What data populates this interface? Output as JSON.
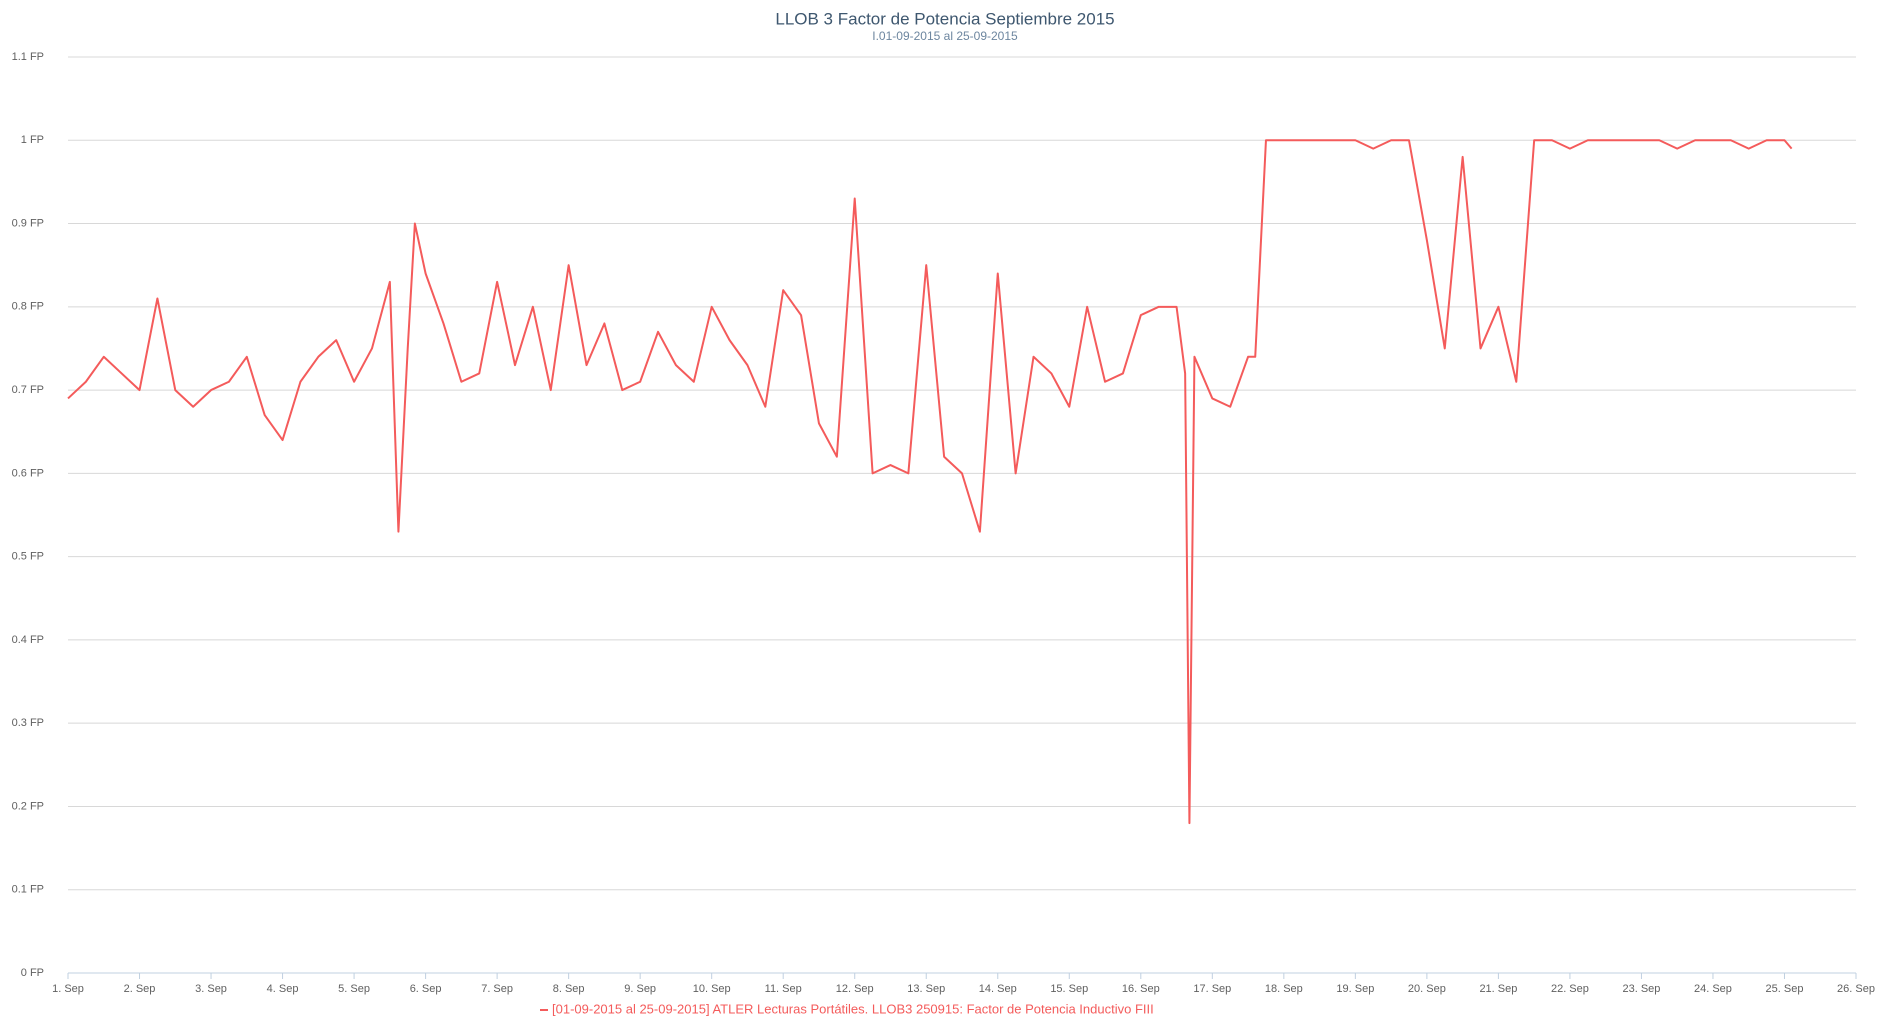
{
  "chart_data": {
    "type": "line",
    "title": "LLOB 3 Factor de Potencia Septiembre 2015",
    "subtitle": "I.01-09-2015 al 25-09-2015",
    "xlim": [
      1,
      26
    ],
    "xticks": [
      {
        "value": 1,
        "label": "1. Sep"
      },
      {
        "value": 2,
        "label": "2. Sep"
      },
      {
        "value": 3,
        "label": "3. Sep"
      },
      {
        "value": 4,
        "label": "4. Sep"
      },
      {
        "value": 5,
        "label": "5. Sep"
      },
      {
        "value": 6,
        "label": "6. Sep"
      },
      {
        "value": 7,
        "label": "7. Sep"
      },
      {
        "value": 8,
        "label": "8. Sep"
      },
      {
        "value": 9,
        "label": "9. Sep"
      },
      {
        "value": 10,
        "label": "10. Sep"
      },
      {
        "value": 11,
        "label": "11. Sep"
      },
      {
        "value": 12,
        "label": "12. Sep"
      },
      {
        "value": 13,
        "label": "13. Sep"
      },
      {
        "value": 14,
        "label": "14. Sep"
      },
      {
        "value": 15,
        "label": "15. Sep"
      },
      {
        "value": 16,
        "label": "16. Sep"
      },
      {
        "value": 17,
        "label": "17. Sep"
      },
      {
        "value": 18,
        "label": "18. Sep"
      },
      {
        "value": 19,
        "label": "19. Sep"
      },
      {
        "value": 20,
        "label": "20. Sep"
      },
      {
        "value": 21,
        "label": "21. Sep"
      },
      {
        "value": 22,
        "label": "22. Sep"
      },
      {
        "value": 23,
        "label": "23. Sep"
      },
      {
        "value": 24,
        "label": "24. Sep"
      },
      {
        "value": 25,
        "label": "25. Sep"
      },
      {
        "value": 26,
        "label": "26. Sep"
      }
    ],
    "ylim": [
      0,
      1.1
    ],
    "yticks": [
      {
        "value": 0,
        "label": "0 FP"
      },
      {
        "value": 0.1,
        "label": "0.1 FP"
      },
      {
        "value": 0.2,
        "label": "0.2 FP"
      },
      {
        "value": 0.3,
        "label": "0.3 FP"
      },
      {
        "value": 0.4,
        "label": "0.4 FP"
      },
      {
        "value": 0.5,
        "label": "0.5 FP"
      },
      {
        "value": 0.6,
        "label": "0.6 FP"
      },
      {
        "value": 0.7,
        "label": "0.7 FP"
      },
      {
        "value": 0.8,
        "label": "0.8 FP"
      },
      {
        "value": 0.9,
        "label": "0.9 FP"
      },
      {
        "value": 1,
        "label": "1 FP"
      },
      {
        "value": 1.1,
        "label": "1.1 FP"
      }
    ],
    "grid": true,
    "x": [
      1,
      1.25,
      1.5,
      1.75,
      2,
      2.25,
      2.5,
      2.75,
      3,
      3.25,
      3.5,
      3.75,
      4,
      4.25,
      4.5,
      4.75,
      5,
      5.25,
      5.5,
      5.62,
      5.75,
      5.85,
      6,
      6.25,
      6.5,
      6.75,
      7,
      7.25,
      7.5,
      7.75,
      8,
      8.25,
      8.5,
      8.75,
      9,
      9.25,
      9.5,
      9.75,
      10,
      10.25,
      10.5,
      10.75,
      11,
      11.25,
      11.5,
      11.75,
      12,
      12.25,
      12.5,
      12.75,
      13,
      13.25,
      13.5,
      13.75,
      14,
      14.25,
      14.5,
      14.75,
      15,
      15.25,
      15.5,
      15.75,
      16,
      16.25,
      16.5,
      16.62,
      16.68,
      16.75,
      17,
      17.25,
      17.5,
      17.6,
      17.75,
      18,
      18.25,
      18.5,
      18.75,
      19,
      19.25,
      19.5,
      19.75,
      20,
      20.25,
      20.5,
      20.75,
      21,
      21.25,
      21.5,
      21.75,
      22,
      22.25,
      22.5,
      22.75,
      23,
      23.25,
      23.5,
      23.75,
      24,
      24.25,
      24.5,
      24.75,
      25,
      25.1
    ],
    "series": [
      {
        "name": "[01-09-2015 al 25-09-2015] ATLER Lecturas Portátiles. LLOB3 250915: Factor de Potencia Inductivo FIII",
        "color": "#f45b5b",
        "values": [
          0.69,
          0.71,
          0.74,
          0.72,
          0.7,
          0.81,
          0.7,
          0.68,
          0.7,
          0.71,
          0.74,
          0.67,
          0.64,
          0.71,
          0.74,
          0.76,
          0.71,
          0.75,
          0.83,
          0.53,
          0.75,
          0.9,
          0.84,
          0.78,
          0.71,
          0.72,
          0.83,
          0.73,
          0.8,
          0.7,
          0.85,
          0.73,
          0.78,
          0.7,
          0.71,
          0.77,
          0.73,
          0.71,
          0.8,
          0.76,
          0.73,
          0.68,
          0.82,
          0.79,
          0.66,
          0.62,
          0.93,
          0.6,
          0.61,
          0.6,
          0.85,
          0.62,
          0.6,
          0.53,
          0.84,
          0.6,
          0.74,
          0.72,
          0.68,
          0.8,
          0.71,
          0.72,
          0.79,
          0.8,
          0.8,
          0.72,
          0.18,
          0.74,
          0.69,
          0.68,
          0.74,
          0.74,
          1,
          1,
          1,
          1,
          1,
          1,
          0.99,
          1,
          1,
          0.88,
          0.75,
          0.98,
          0.75,
          0.8,
          0.71,
          1,
          1,
          0.99,
          1,
          1,
          1,
          1,
          1,
          0.99,
          1,
          1,
          1,
          0.99,
          1,
          1,
          0.99
        ]
      }
    ]
  }
}
